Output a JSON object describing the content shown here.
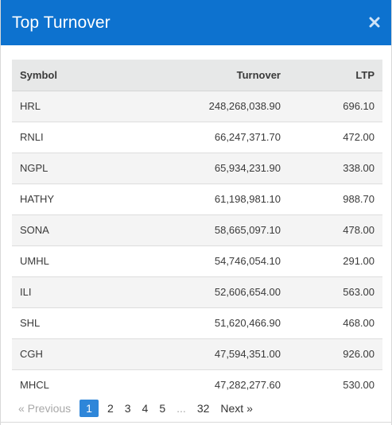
{
  "header": {
    "title": "Top Turnover",
    "close_icon": "close-icon",
    "color": "#0d72cf"
  },
  "table": {
    "columns": [
      "Symbol",
      "Turnover",
      "LTP"
    ],
    "rows": [
      {
        "symbol": "HRL",
        "turnover": "248,268,038.90",
        "ltp": "696.10"
      },
      {
        "symbol": "RNLI",
        "turnover": "66,247,371.70",
        "ltp": "472.00"
      },
      {
        "symbol": "NGPL",
        "turnover": "65,934,231.90",
        "ltp": "338.00"
      },
      {
        "symbol": "HATHY",
        "turnover": "61,198,981.10",
        "ltp": "988.70"
      },
      {
        "symbol": "SONA",
        "turnover": "58,665,097.10",
        "ltp": "478.00"
      },
      {
        "symbol": "UMHL",
        "turnover": "54,746,054.10",
        "ltp": "291.00"
      },
      {
        "symbol": "ILI",
        "turnover": "52,606,654.00",
        "ltp": "563.00"
      },
      {
        "symbol": "SHL",
        "turnover": "51,620,466.90",
        "ltp": "468.00"
      },
      {
        "symbol": "CGH",
        "turnover": "47,594,351.00",
        "ltp": "926.00"
      },
      {
        "symbol": "MHCL",
        "turnover": "47,282,277.60",
        "ltp": "530.00"
      }
    ]
  },
  "pagination": {
    "previous": "« Previous",
    "pages": [
      "1",
      "2",
      "3",
      "4",
      "5"
    ],
    "ellipsis": "...",
    "last": "32",
    "next": "Next »",
    "active_page": "1",
    "active_color": "#2e86d9"
  }
}
